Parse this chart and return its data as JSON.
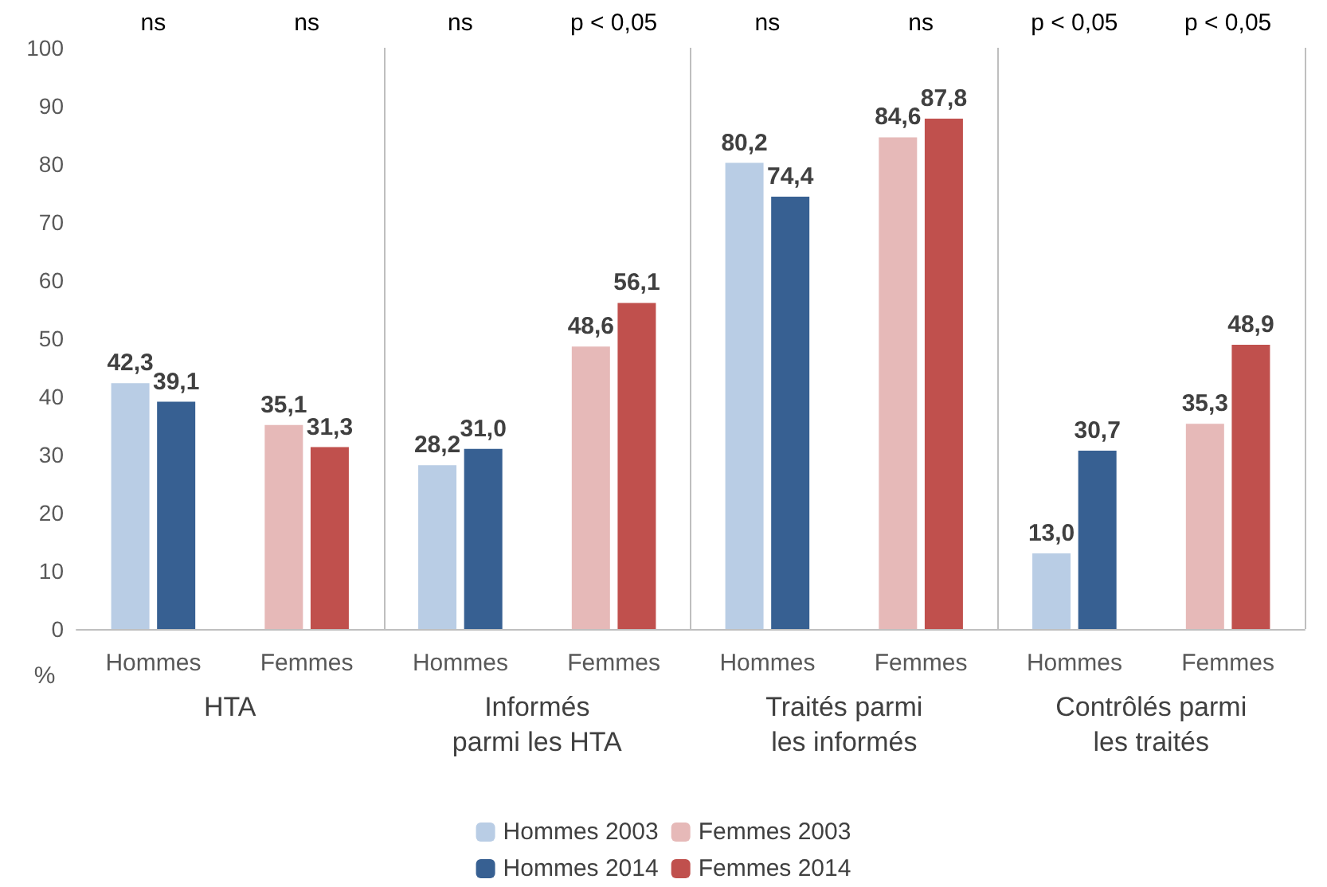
{
  "chart_data": {
    "type": "bar",
    "ylabel": "%",
    "categories": [
      "Hommes",
      "Femmes",
      "Hommes",
      "Femmes",
      "Hommes",
      "Femmes",
      "Hommes",
      "Femmes"
    ],
    "series": [
      {
        "name": "Hommes 2003",
        "color": "#b9cde5",
        "values": [
          42.3,
          null,
          28.2,
          null,
          80.2,
          null,
          13.0,
          null
        ],
        "value_labels": [
          "42,3",
          null,
          "28,2",
          null,
          "80,2",
          null,
          "13,0",
          null
        ]
      },
      {
        "name": "Femmes 2003",
        "color": "#e6b9b8",
        "values": [
          null,
          35.1,
          null,
          48.6,
          null,
          84.6,
          null,
          35.3
        ],
        "value_labels": [
          null,
          "35,1",
          null,
          "48,6",
          null,
          "84,6",
          null,
          "35,3"
        ]
      },
      {
        "name": "Hommes 2014",
        "color": "#376092",
        "values": [
          39.1,
          null,
          31.0,
          null,
          74.4,
          null,
          30.7,
          null
        ],
        "value_labels": [
          "39,1",
          null,
          "31,0",
          null,
          "74,4",
          null,
          "30,7",
          null
        ]
      },
      {
        "name": "Femmes 2014",
        "color": "#c0504d",
        "values": [
          null,
          31.3,
          null,
          56.1,
          null,
          87.8,
          null,
          48.9
        ],
        "value_labels": [
          null,
          "31,3",
          null,
          "56,1",
          null,
          "87,8",
          null,
          "48,9"
        ]
      }
    ],
    "ylim": [
      0,
      100
    ],
    "yticks": [
      0,
      10,
      20,
      30,
      40,
      50,
      60,
      70,
      80,
      90,
      100
    ],
    "grid": false,
    "legend": "bottom",
    "annotations": [
      "ns",
      "ns",
      "ns",
      "p < 0,05",
      "ns",
      "ns",
      "p < 0,05",
      "p < 0,05",
      "HTA",
      "Informés\nparmi les HTA",
      "Traités parmi\nles informés",
      "Contrôlés parmi\nles traités"
    ]
  }
}
